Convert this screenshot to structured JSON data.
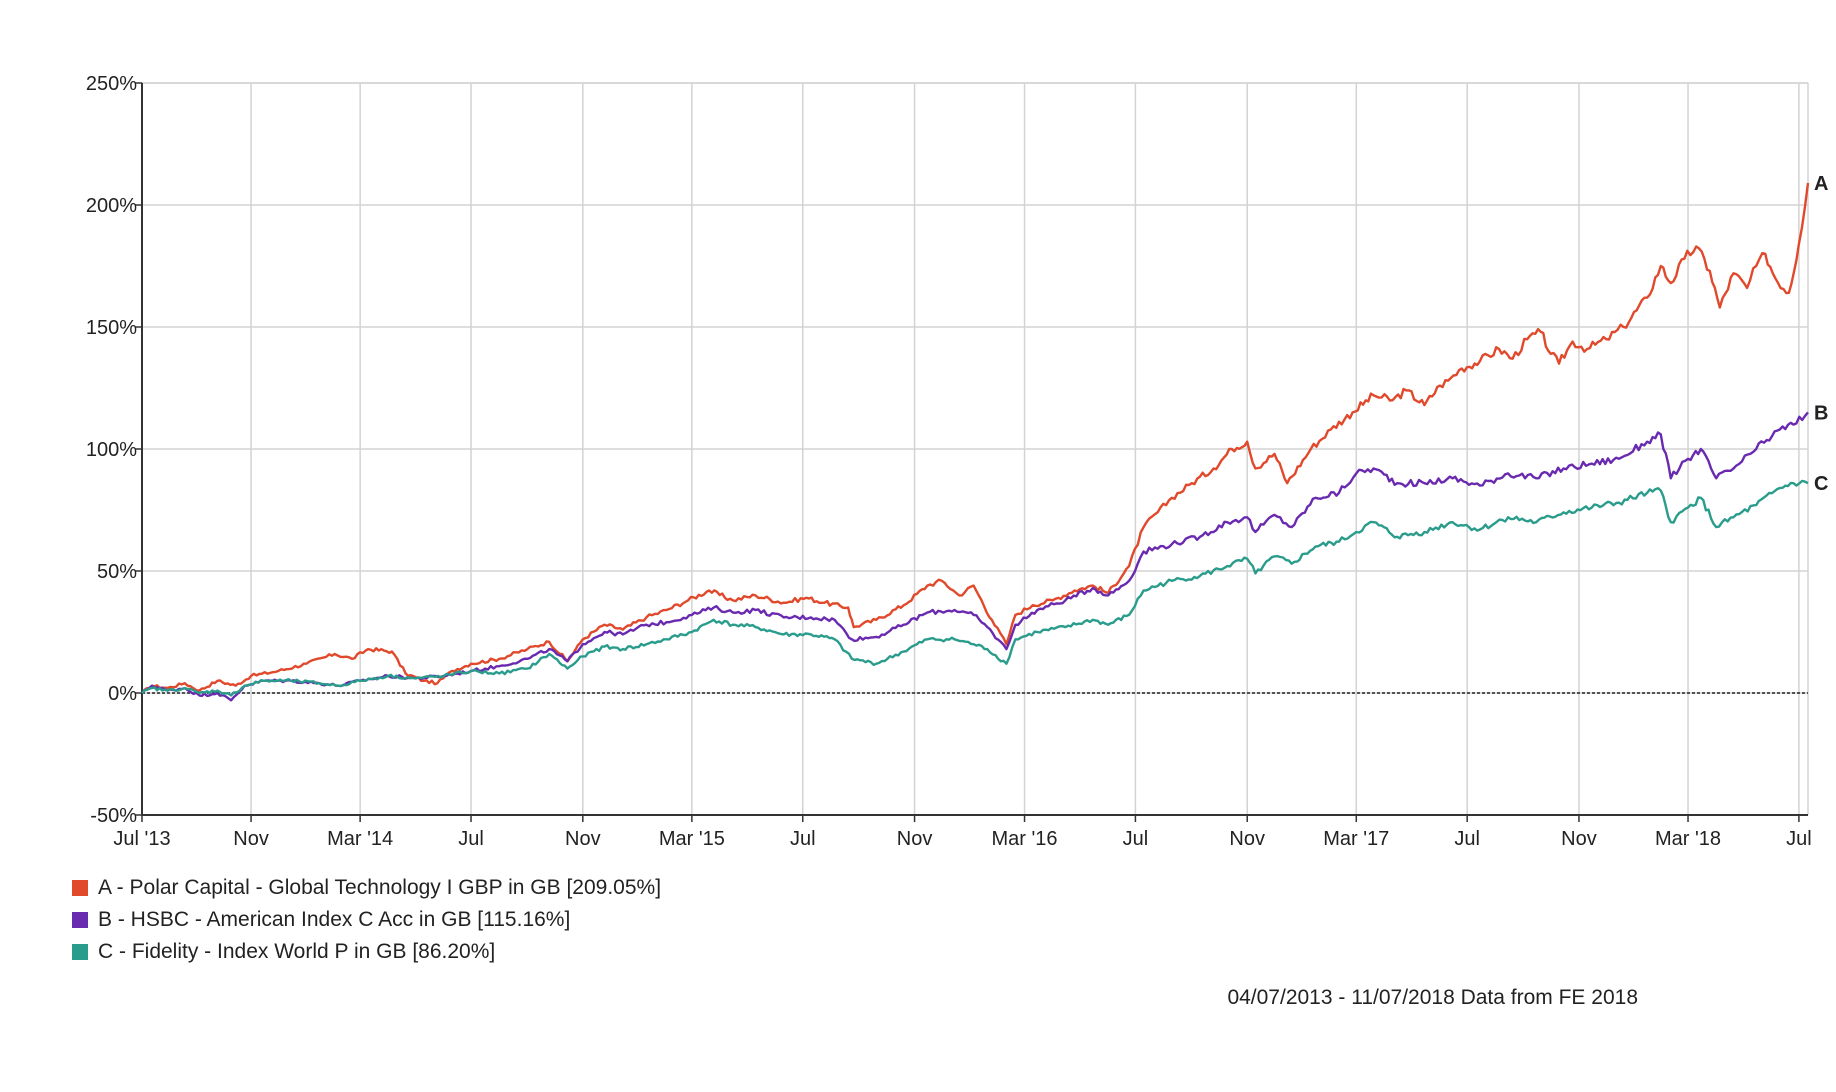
{
  "chart_data": {
    "type": "line",
    "title": "",
    "xlabel": "",
    "ylabel": "",
    "y_ticks": [
      "250%",
      "200%",
      "150%",
      "100%",
      "50%",
      "0%",
      "-50%"
    ],
    "ylim": [
      -50,
      250
    ],
    "x_ticks": [
      "Jul '13",
      "Nov",
      "Mar '14",
      "Jul",
      "Nov",
      "Mar '15",
      "Jul",
      "Nov",
      "Mar '16",
      "Jul",
      "Nov",
      "Mar '17",
      "Jul",
      "Nov",
      "Mar '18",
      "Jul"
    ],
    "x_range": [
      "2013-07-04",
      "2018-07-11"
    ],
    "grid": true,
    "zero_line": true,
    "series": [
      {
        "name": "A - Polar Capital - Global Technology I GBP in GB [209.05%]",
        "label": "A",
        "color": "#e0492b",
        "points": [
          [
            "2013-07-04",
            0
          ],
          [
            "2013-07-15",
            3
          ],
          [
            "2013-08-01",
            2
          ],
          [
            "2013-08-20",
            4
          ],
          [
            "2013-09-05",
            1
          ],
          [
            "2013-09-25",
            5
          ],
          [
            "2013-10-15",
            3
          ],
          [
            "2013-11-01",
            7
          ],
          [
            "2013-12-01",
            9
          ],
          [
            "2014-01-01",
            12
          ],
          [
            "2014-02-01",
            16
          ],
          [
            "2014-02-20",
            14
          ],
          [
            "2014-03-10",
            18
          ],
          [
            "2014-04-05",
            17
          ],
          [
            "2014-04-20",
            8
          ],
          [
            "2014-05-10",
            5
          ],
          [
            "2014-05-25",
            4
          ],
          [
            "2014-06-10",
            9
          ],
          [
            "2014-07-01",
            12
          ],
          [
            "2014-08-01",
            14
          ],
          [
            "2014-09-01",
            18
          ],
          [
            "2014-09-25",
            21
          ],
          [
            "2014-10-15",
            13
          ],
          [
            "2014-11-01",
            22
          ],
          [
            "2014-11-25",
            28
          ],
          [
            "2014-12-15",
            26
          ],
          [
            "2015-01-10",
            31
          ],
          [
            "2015-02-01",
            34
          ],
          [
            "2015-02-25",
            38
          ],
          [
            "2015-03-20",
            42
          ],
          [
            "2015-04-15",
            38
          ],
          [
            "2015-05-10",
            40
          ],
          [
            "2015-06-10",
            37
          ],
          [
            "2015-07-05",
            39
          ],
          [
            "2015-07-25",
            37
          ],
          [
            "2015-08-20",
            35
          ],
          [
            "2015-08-26",
            27
          ],
          [
            "2015-09-20",
            30
          ],
          [
            "2015-10-20",
            36
          ],
          [
            "2015-11-15",
            44
          ],
          [
            "2015-12-01",
            46
          ],
          [
            "2015-12-20",
            40
          ],
          [
            "2016-01-05",
            44
          ],
          [
            "2016-01-25",
            30
          ],
          [
            "2016-02-10",
            20
          ],
          [
            "2016-02-20",
            32
          ],
          [
            "2016-03-10",
            36
          ],
          [
            "2016-04-01",
            38
          ],
          [
            "2016-04-25",
            42
          ],
          [
            "2016-05-15",
            44
          ],
          [
            "2016-06-01",
            41
          ],
          [
            "2016-06-24",
            52
          ],
          [
            "2016-07-10",
            68
          ],
          [
            "2016-08-10",
            80
          ],
          [
            "2016-09-01",
            86
          ],
          [
            "2016-09-25",
            92
          ],
          [
            "2016-10-15",
            100
          ],
          [
            "2016-11-01",
            103
          ],
          [
            "2016-11-10",
            92
          ],
          [
            "2016-12-01",
            98
          ],
          [
            "2016-12-15",
            86
          ],
          [
            "2017-01-10",
            100
          ],
          [
            "2017-02-01",
            108
          ],
          [
            "2017-02-25",
            115
          ],
          [
            "2017-03-20",
            122
          ],
          [
            "2017-04-10",
            120
          ],
          [
            "2017-04-25",
            124
          ],
          [
            "2017-05-15",
            118
          ],
          [
            "2017-06-01",
            126
          ],
          [
            "2017-06-10",
            128
          ],
          [
            "2017-06-25",
            133
          ],
          [
            "2017-07-15",
            136
          ],
          [
            "2017-08-05",
            141
          ],
          [
            "2017-08-20",
            137
          ],
          [
            "2017-09-05",
            145
          ],
          [
            "2017-09-20",
            148
          ],
          [
            "2017-10-01",
            139
          ],
          [
            "2017-10-10",
            135
          ],
          [
            "2017-10-25",
            144
          ],
          [
            "2017-11-10",
            141
          ],
          [
            "2017-12-01",
            145
          ],
          [
            "2017-12-20",
            150
          ],
          [
            "2018-01-15",
            162
          ],
          [
            "2018-01-30",
            175
          ],
          [
            "2018-02-10",
            168
          ],
          [
            "2018-02-25",
            178
          ],
          [
            "2018-03-10",
            183
          ],
          [
            "2018-03-25",
            173
          ],
          [
            "2018-04-05",
            158
          ],
          [
            "2018-04-20",
            172
          ],
          [
            "2018-05-05",
            166
          ],
          [
            "2018-05-15",
            175
          ],
          [
            "2018-05-25",
            180
          ],
          [
            "2018-06-05",
            170
          ],
          [
            "2018-06-20",
            164
          ],
          [
            "2018-07-01",
            184
          ],
          [
            "2018-07-11",
            209
          ]
        ]
      },
      {
        "name": "B - HSBC - American Index C Acc in GB [115.16%]",
        "label": "B",
        "color": "#6a2ab0",
        "points": [
          [
            "2013-07-04",
            0
          ],
          [
            "2013-07-15",
            3
          ],
          [
            "2013-08-01",
            1
          ],
          [
            "2013-08-20",
            2
          ],
          [
            "2013-09-05",
            -1
          ],
          [
            "2013-09-25",
            0
          ],
          [
            "2013-10-10",
            -3
          ],
          [
            "2013-10-25",
            3
          ],
          [
            "2013-11-15",
            5
          ],
          [
            "2013-12-15",
            5
          ],
          [
            "2014-01-15",
            4
          ],
          [
            "2014-02-05",
            3
          ],
          [
            "2014-03-01",
            5
          ],
          [
            "2014-04-01",
            7
          ],
          [
            "2014-05-01",
            6
          ],
          [
            "2014-06-01",
            7
          ],
          [
            "2014-07-01",
            9
          ],
          [
            "2014-08-01",
            11
          ],
          [
            "2014-09-01",
            14
          ],
          [
            "2014-09-25",
            18
          ],
          [
            "2014-10-15",
            13
          ],
          [
            "2014-11-01",
            20
          ],
          [
            "2014-11-25",
            25
          ],
          [
            "2014-12-15",
            24
          ],
          [
            "2015-01-10",
            28
          ],
          [
            "2015-02-01",
            29
          ],
          [
            "2015-03-01",
            32
          ],
          [
            "2015-03-25",
            35
          ],
          [
            "2015-04-15",
            33
          ],
          [
            "2015-05-10",
            34
          ],
          [
            "2015-06-10",
            31
          ],
          [
            "2015-07-10",
            31
          ],
          [
            "2015-08-05",
            30
          ],
          [
            "2015-08-24",
            22
          ],
          [
            "2015-09-20",
            23
          ],
          [
            "2015-10-20",
            28
          ],
          [
            "2015-11-15",
            33
          ],
          [
            "2015-12-15",
            34
          ],
          [
            "2016-01-05",
            32
          ],
          [
            "2016-01-20",
            27
          ],
          [
            "2016-02-10",
            18
          ],
          [
            "2016-02-20",
            28
          ],
          [
            "2016-03-15",
            34
          ],
          [
            "2016-04-15",
            38
          ],
          [
            "2016-05-15",
            43
          ],
          [
            "2016-06-01",
            40
          ],
          [
            "2016-06-24",
            46
          ],
          [
            "2016-07-10",
            58
          ],
          [
            "2016-08-10",
            61
          ],
          [
            "2016-09-10",
            64
          ],
          [
            "2016-10-10",
            70
          ],
          [
            "2016-11-01",
            72
          ],
          [
            "2016-11-10",
            66
          ],
          [
            "2016-12-01",
            73
          ],
          [
            "2016-12-20",
            68
          ],
          [
            "2017-01-15",
            80
          ],
          [
            "2017-02-10",
            82
          ],
          [
            "2017-03-01",
            90
          ],
          [
            "2017-03-20",
            92
          ],
          [
            "2017-04-15",
            86
          ],
          [
            "2017-05-15",
            86
          ],
          [
            "2017-06-15",
            88
          ],
          [
            "2017-07-15",
            85
          ],
          [
            "2017-08-15",
            90
          ],
          [
            "2017-09-15",
            88
          ],
          [
            "2017-10-15",
            92
          ],
          [
            "2017-11-15",
            94
          ],
          [
            "2017-12-15",
            96
          ],
          [
            "2018-01-15",
            103
          ],
          [
            "2018-01-30",
            106
          ],
          [
            "2018-02-10",
            88
          ],
          [
            "2018-03-01",
            96
          ],
          [
            "2018-03-15",
            100
          ],
          [
            "2018-04-01",
            88
          ],
          [
            "2018-04-20",
            92
          ],
          [
            "2018-05-15",
            100
          ],
          [
            "2018-06-10",
            108
          ],
          [
            "2018-06-25",
            110
          ],
          [
            "2018-07-11",
            115
          ]
        ]
      },
      {
        "name": "C - Fidelity - Index World P in GB [86.20%]",
        "label": "C",
        "color": "#2a9c8c",
        "points": [
          [
            "2013-07-04",
            0
          ],
          [
            "2013-07-15",
            2
          ],
          [
            "2013-08-01",
            1
          ],
          [
            "2013-08-20",
            2
          ],
          [
            "2013-09-05",
            0
          ],
          [
            "2013-09-25",
            1
          ],
          [
            "2013-10-10",
            -1
          ],
          [
            "2013-10-25",
            3
          ],
          [
            "2013-11-15",
            5
          ],
          [
            "2013-12-15",
            5
          ],
          [
            "2014-01-15",
            4
          ],
          [
            "2014-02-05",
            3
          ],
          [
            "2014-03-01",
            5
          ],
          [
            "2014-04-01",
            7
          ],
          [
            "2014-05-01",
            6
          ],
          [
            "2014-06-01",
            7
          ],
          [
            "2014-07-01",
            9
          ],
          [
            "2014-08-01",
            8
          ],
          [
            "2014-09-01",
            10
          ],
          [
            "2014-09-25",
            16
          ],
          [
            "2014-10-15",
            10
          ],
          [
            "2014-11-01",
            15
          ],
          [
            "2014-11-25",
            19
          ],
          [
            "2014-12-15",
            18
          ],
          [
            "2015-01-10",
            20
          ],
          [
            "2015-02-01",
            22
          ],
          [
            "2015-03-01",
            25
          ],
          [
            "2015-03-25",
            30
          ],
          [
            "2015-04-15",
            28
          ],
          [
            "2015-05-10",
            27
          ],
          [
            "2015-06-10",
            24
          ],
          [
            "2015-07-10",
            24
          ],
          [
            "2015-08-05",
            22
          ],
          [
            "2015-08-24",
            14
          ],
          [
            "2015-09-20",
            12
          ],
          [
            "2015-10-20",
            17
          ],
          [
            "2015-11-15",
            22
          ],
          [
            "2015-12-15",
            22
          ],
          [
            "2016-01-05",
            20
          ],
          [
            "2016-01-20",
            18
          ],
          [
            "2016-02-10",
            12
          ],
          [
            "2016-02-20",
            22
          ],
          [
            "2016-03-15",
            25
          ],
          [
            "2016-04-15",
            27
          ],
          [
            "2016-05-15",
            30
          ],
          [
            "2016-06-01",
            28
          ],
          [
            "2016-06-24",
            32
          ],
          [
            "2016-07-10",
            42
          ],
          [
            "2016-08-10",
            46
          ],
          [
            "2016-09-10",
            48
          ],
          [
            "2016-10-10",
            52
          ],
          [
            "2016-11-01",
            55
          ],
          [
            "2016-11-10",
            49
          ],
          [
            "2016-12-01",
            56
          ],
          [
            "2016-12-20",
            53
          ],
          [
            "2017-01-15",
            60
          ],
          [
            "2017-02-10",
            62
          ],
          [
            "2017-03-01",
            66
          ],
          [
            "2017-03-20",
            70
          ],
          [
            "2017-04-15",
            64
          ],
          [
            "2017-05-15",
            66
          ],
          [
            "2017-06-15",
            70
          ],
          [
            "2017-07-15",
            67
          ],
          [
            "2017-08-15",
            72
          ],
          [
            "2017-09-15",
            70
          ],
          [
            "2017-10-15",
            74
          ],
          [
            "2017-11-15",
            76
          ],
          [
            "2017-12-15",
            78
          ],
          [
            "2018-01-15",
            82
          ],
          [
            "2018-01-30",
            83
          ],
          [
            "2018-02-10",
            70
          ],
          [
            "2018-03-01",
            76
          ],
          [
            "2018-03-15",
            80
          ],
          [
            "2018-04-01",
            68
          ],
          [
            "2018-04-20",
            72
          ],
          [
            "2018-05-15",
            77
          ],
          [
            "2018-06-10",
            84
          ],
          [
            "2018-06-25",
            86
          ],
          [
            "2018-07-11",
            86
          ]
        ]
      }
    ]
  },
  "footer": {
    "source_text": "04/07/2013 - 11/07/2018 Data from FE 2018"
  }
}
